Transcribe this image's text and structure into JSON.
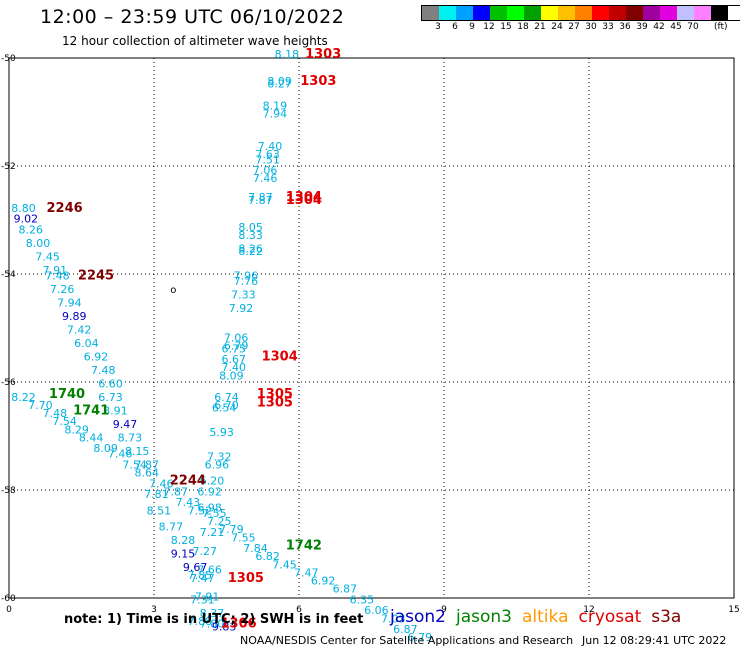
{
  "header": {
    "title": "12:00 – 23:59 UTC 06/10/2022",
    "subtitle": "12 hour collection of altimeter wave heights"
  },
  "legend": {
    "colors": [
      "#808080",
      "#00f0f0",
      "#00a0ff",
      "#0000ff",
      "#00c000",
      "#00ff00",
      "#00a000",
      "#ffff00",
      "#ffc000",
      "#ff8000",
      "#ff0000",
      "#c00000",
      "#800000",
      "#a000a0",
      "#e000e0",
      "#c0c0ff",
      "#ff80ff",
      "#000000"
    ],
    "labels": [
      "3",
      "6",
      "9",
      "12",
      "15",
      "18",
      "21",
      "24",
      "27",
      "30",
      "33",
      "36",
      "39",
      "42",
      "45",
      "70"
    ],
    "units": "(ft)"
  },
  "axes": {
    "x_ticks": [
      "0",
      "3",
      "6",
      "9",
      "12",
      "15"
    ],
    "y_ticks": [
      "-50",
      "-52",
      "-54",
      "-56",
      "-58",
      "-60"
    ],
    "x_range": [
      0,
      15
    ],
    "y_range": [
      -60,
      -50
    ]
  },
  "footer": {
    "note": "note:  1) Time is in UTC;  2) SWH is in feet",
    "credit": "NOAA/NESDIS Center for Satellite Applications and Research",
    "timestamp": "Jun 12 08:29:41 UTC 2022"
  },
  "satellites": [
    {
      "name": "jason2",
      "color": "#0000c0"
    },
    {
      "name": "jason3",
      "color": "#008000"
    },
    {
      "name": "altika",
      "color": "#ff9900"
    },
    {
      "name": "cryosat",
      "color": "#e00000"
    },
    {
      "name": "s3a",
      "color": "#800000"
    }
  ],
  "observations": [
    {
      "lon": 5.75,
      "lat": -50.0,
      "v": "8.18",
      "c": "#00b0e0"
    },
    {
      "lon": 5.6,
      "lat": -50.5,
      "v": "8.09",
      "c": "#00b0e0"
    },
    {
      "lon": 5.6,
      "lat": -50.55,
      "v": "8.27",
      "c": "#00b0e0"
    },
    {
      "lon": 5.5,
      "lat": -50.95,
      "v": "8.19",
      "c": "#00b0e0"
    },
    {
      "lon": 5.5,
      "lat": -51.1,
      "v": "7.94",
      "c": "#00b0e0"
    },
    {
      "lon": 5.4,
      "lat": -51.7,
      "v": "7.40",
      "c": "#00b0e0"
    },
    {
      "lon": 5.35,
      "lat": -51.85,
      "v": "7.63",
      "c": "#00b0e0"
    },
    {
      "lon": 5.35,
      "lat": -51.95,
      "v": "7.51",
      "c": "#00b0e0"
    },
    {
      "lon": 5.3,
      "lat": -52.15,
      "v": "7.06",
      "c": "#00b0e0"
    },
    {
      "lon": 5.3,
      "lat": -52.3,
      "v": "7.46",
      "c": "#00b0e0"
    },
    {
      "lon": 5.2,
      "lat": -52.65,
      "v": "7.87",
      "c": "#00b0e0"
    },
    {
      "lon": 5.2,
      "lat": -52.7,
      "v": "7.87",
      "c": "#00b0e0"
    },
    {
      "lon": 5.0,
      "lat": -53.2,
      "v": "8.05",
      "c": "#00b0e0"
    },
    {
      "lon": 5.0,
      "lat": -53.35,
      "v": "8.33",
      "c": "#00b0e0"
    },
    {
      "lon": 5.0,
      "lat": -53.6,
      "v": "8.26",
      "c": "#00b0e0"
    },
    {
      "lon": 5.0,
      "lat": -53.65,
      "v": "8.22",
      "c": "#00b0e0"
    },
    {
      "lon": 4.9,
      "lat": -54.1,
      "v": "7.96",
      "c": "#00b0e0"
    },
    {
      "lon": 4.9,
      "lat": -54.2,
      "v": "7.76",
      "c": "#00b0e0"
    },
    {
      "lon": 4.85,
      "lat": -54.45,
      "v": "7.33",
      "c": "#00b0e0"
    },
    {
      "lon": 4.8,
      "lat": -54.7,
      "v": "7.92",
      "c": "#00b0e0"
    },
    {
      "lon": 4.7,
      "lat": -55.25,
      "v": "7.06",
      "c": "#00b0e0"
    },
    {
      "lon": 4.7,
      "lat": -55.4,
      "v": "6.79",
      "c": "#00b0e0"
    },
    {
      "lon": 4.65,
      "lat": -55.45,
      "v": "6.75",
      "c": "#00b0e0"
    },
    {
      "lon": 4.65,
      "lat": -55.65,
      "v": "6.67",
      "c": "#00b0e0"
    },
    {
      "lon": 4.65,
      "lat": -55.8,
      "v": "7.40",
      "c": "#00b0e0"
    },
    {
      "lon": 4.6,
      "lat": -55.95,
      "v": "8.09",
      "c": "#00b0e0"
    },
    {
      "lon": 4.5,
      "lat": -56.35,
      "v": "6.74",
      "c": "#00b0e0"
    },
    {
      "lon": 4.5,
      "lat": -56.5,
      "v": "6.70",
      "c": "#00b0e0"
    },
    {
      "lon": 4.45,
      "lat": -56.55,
      "v": "6.54",
      "c": "#00b0e0"
    },
    {
      "lon": 4.4,
      "lat": -57.0,
      "v": "5.93",
      "c": "#00b0e0"
    },
    {
      "lon": 4.35,
      "lat": -57.45,
      "v": "7.32",
      "c": "#00b0e0"
    },
    {
      "lon": 4.3,
      "lat": -57.6,
      "v": "6.96",
      "c": "#00b0e0"
    },
    {
      "lon": 4.2,
      "lat": -57.9,
      "v": "6.20",
      "c": "#00b0e0"
    },
    {
      "lon": 4.15,
      "lat": -58.1,
      "v": "6.92",
      "c": "#00b0e0"
    },
    {
      "lon": 0.3,
      "lat": -52.85,
      "v": "8.80",
      "c": "#00b0e0"
    },
    {
      "lon": 0.35,
      "lat": -53.05,
      "v": "9.02",
      "c": "#0000c0"
    },
    {
      "lon": 0.45,
      "lat": -53.25,
      "v": "8.26",
      "c": "#00b0e0"
    },
    {
      "lon": 0.6,
      "lat": -53.5,
      "v": "8.00",
      "c": "#00b0e0"
    },
    {
      "lon": 0.8,
      "lat": -53.75,
      "v": "7.45",
      "c": "#00b0e0"
    },
    {
      "lon": 0.95,
      "lat": -54.0,
      "v": "7.91",
      "c": "#00b0e0"
    },
    {
      "lon": 1.0,
      "lat": -54.1,
      "v": "7.48",
      "c": "#00b0e0"
    },
    {
      "lon": 1.1,
      "lat": -54.35,
      "v": "7.26",
      "c": "#00b0e0"
    },
    {
      "lon": 1.25,
      "lat": -54.6,
      "v": "7.94",
      "c": "#00b0e0"
    },
    {
      "lon": 1.35,
      "lat": -54.85,
      "v": "9.89",
      "c": "#0000c0"
    },
    {
      "lon": 1.45,
      "lat": -55.1,
      "v": "7.42",
      "c": "#00b0e0"
    },
    {
      "lon": 1.6,
      "lat": -55.35,
      "v": "6.04",
      "c": "#00b0e0"
    },
    {
      "lon": 1.8,
      "lat": -55.6,
      "v": "6.92",
      "c": "#00b0e0"
    },
    {
      "lon": 1.95,
      "lat": -55.85,
      "v": "7.48",
      "c": "#00b0e0"
    },
    {
      "lon": 2.1,
      "lat": -56.1,
      "v": "6.60",
      "c": "#00b0e0"
    },
    {
      "lon": 2.1,
      "lat": -56.35,
      "v": "6.73",
      "c": "#00b0e0"
    },
    {
      "lon": 0.3,
      "lat": -56.35,
      "v": "8.22",
      "c": "#00b0e0"
    },
    {
      "lon": 0.65,
      "lat": -56.5,
      "v": "7.70",
      "c": "#00b0e0"
    },
    {
      "lon": 0.95,
      "lat": -56.65,
      "v": "7.48",
      "c": "#00b0e0"
    },
    {
      "lon": 1.15,
      "lat": -56.8,
      "v": "7.54",
      "c": "#00b0e0"
    },
    {
      "lon": 1.4,
      "lat": -56.95,
      "v": "8.29",
      "c": "#00b0e0"
    },
    {
      "lon": 1.7,
      "lat": -57.1,
      "v": "8.44",
      "c": "#00b0e0"
    },
    {
      "lon": 2.2,
      "lat": -56.6,
      "v": "8.91",
      "c": "#00b0e0"
    },
    {
      "lon": 2.4,
      "lat": -56.85,
      "v": "9.47",
      "c": "#0000c0"
    },
    {
      "lon": 2.5,
      "lat": -57.1,
      "v": "8.73",
      "c": "#00b0e0"
    },
    {
      "lon": 2.0,
      "lat": -57.3,
      "v": "8.09",
      "c": "#00b0e0"
    },
    {
      "lon": 2.3,
      "lat": -57.4,
      "v": "7.46",
      "c": "#00b0e0"
    },
    {
      "lon": 2.65,
      "lat": -57.35,
      "v": "8.15",
      "c": "#00b0e0"
    },
    {
      "lon": 2.6,
      "lat": -57.6,
      "v": "7.54",
      "c": "#00b0e0"
    },
    {
      "lon": 2.85,
      "lat": -57.6,
      "v": "7.87",
      "c": "#00b0e0"
    },
    {
      "lon": 2.85,
      "lat": -57.75,
      "v": "8.64",
      "c": "#00b0e0"
    },
    {
      "lon": 3.15,
      "lat": -57.95,
      "v": "7.46",
      "c": "#00b0e0"
    },
    {
      "lon": 3.05,
      "lat": -58.15,
      "v": "7.81",
      "c": "#00b0e0"
    },
    {
      "lon": 3.45,
      "lat": -58.1,
      "v": "7.87",
      "c": "#00b0e0"
    },
    {
      "lon": 3.7,
      "lat": -58.3,
      "v": "7.43",
      "c": "#00b0e0"
    },
    {
      "lon": 3.1,
      "lat": -58.45,
      "v": "8.51",
      "c": "#00b0e0"
    },
    {
      "lon": 3.95,
      "lat": -58.45,
      "v": "7.52",
      "c": "#00b0e0"
    },
    {
      "lon": 4.15,
      "lat": -58.4,
      "v": "6.98",
      "c": "#00b0e0"
    },
    {
      "lon": 4.25,
      "lat": -58.5,
      "v": "7.55",
      "c": "#00b0e0"
    },
    {
      "lon": 4.35,
      "lat": -58.65,
      "v": "7.25",
      "c": "#00b0e0"
    },
    {
      "lon": 3.35,
      "lat": -58.75,
      "v": "8.77",
      "c": "#00b0e0"
    },
    {
      "lon": 4.6,
      "lat": -58.8,
      "v": "7.79",
      "c": "#00b0e0"
    },
    {
      "lon": 4.2,
      "lat": -58.85,
      "v": "7.21",
      "c": "#00b0e0"
    },
    {
      "lon": 3.6,
      "lat": -59.0,
      "v": "8.28",
      "c": "#00b0e0"
    },
    {
      "lon": 4.85,
      "lat": -58.95,
      "v": "7.55",
      "c": "#00b0e0"
    },
    {
      "lon": 4.05,
      "lat": -59.2,
      "v": "7.27",
      "c": "#00b0e0"
    },
    {
      "lon": 3.6,
      "lat": -59.25,
      "v": "9.15",
      "c": "#0000c0"
    },
    {
      "lon": 5.1,
      "lat": -59.15,
      "v": "7.84",
      "c": "#00b0e0"
    },
    {
      "lon": 5.35,
      "lat": -59.3,
      "v": "6.82",
      "c": "#00b0e0"
    },
    {
      "lon": 5.7,
      "lat": -59.45,
      "v": "7.45",
      "c": "#00b0e0"
    },
    {
      "lon": 3.85,
      "lat": -59.5,
      "v": "9.67",
      "c": "#0000c0"
    },
    {
      "lon": 4.15,
      "lat": -59.55,
      "v": "7.66",
      "c": "#00b0e0"
    },
    {
      "lon": 3.95,
      "lat": -59.65,
      "v": "7.85",
      "c": "#00b0e0"
    },
    {
      "lon": 6.15,
      "lat": -59.6,
      "v": "7.47",
      "c": "#00b0e0"
    },
    {
      "lon": 4.0,
      "lat": -59.7,
      "v": "7.47",
      "c": "#00b0e0"
    },
    {
      "lon": 6.5,
      "lat": -59.75,
      "v": "6.92",
      "c": "#00b0e0"
    },
    {
      "lon": 6.95,
      "lat": -59.9,
      "v": "6.87",
      "c": "#00b0e0"
    },
    {
      "lon": 4.1,
      "lat": -60.05,
      "v": "7.91",
      "c": "#00b0e0"
    },
    {
      "lon": 4.0,
      "lat": -60.1,
      "v": "7.31",
      "c": "#00b0e0"
    },
    {
      "lon": 7.3,
      "lat": -60.1,
      "v": "6.35",
      "c": "#00b0e0"
    },
    {
      "lon": 4.2,
      "lat": -60.35,
      "v": "8.37",
      "c": "#00b0e0"
    },
    {
      "lon": 7.6,
      "lat": -60.3,
      "v": "6.06",
      "c": "#00b0e0"
    },
    {
      "lon": 7.95,
      "lat": -60.45,
      "v": "7.03",
      "c": "#00b0e0"
    },
    {
      "lon": 3.95,
      "lat": -60.5,
      "v": "7.88",
      "c": "#00b0e0"
    },
    {
      "lon": 4.2,
      "lat": -60.55,
      "v": "7.80",
      "c": "#00b0e0"
    },
    {
      "lon": 4.45,
      "lat": -60.6,
      "v": "9.83",
      "c": "#0000c0"
    },
    {
      "lon": 8.2,
      "lat": -60.65,
      "v": "6.87",
      "c": "#00b0e0"
    },
    {
      "lon": 8.5,
      "lat": -60.8,
      "v": "6.79",
      "c": "#00b0e0"
    }
  ],
  "pass_labels": [
    {
      "lon": 6.5,
      "lat": -50.0,
      "t": "1303",
      "c": "#e00000"
    },
    {
      "lon": 6.4,
      "lat": -50.5,
      "t": "1303",
      "c": "#e00000"
    },
    {
      "lon": 6.1,
      "lat": -52.65,
      "t": "1304",
      "c": "#e00000"
    },
    {
      "lon": 6.1,
      "lat": -52.7,
      "t": "1304",
      "c": "#e00000"
    },
    {
      "lon": 5.6,
      "lat": -55.6,
      "t": "1304",
      "c": "#e00000"
    },
    {
      "lon": 5.5,
      "lat": -56.3,
      "t": "1305",
      "c": "#e00000"
    },
    {
      "lon": 5.5,
      "lat": -56.45,
      "t": "1305",
      "c": "#e00000"
    },
    {
      "lon": 4.9,
      "lat": -59.7,
      "t": "1305",
      "c": "#e00000"
    },
    {
      "lon": 4.75,
      "lat": -60.55,
      "t": "1306",
      "c": "#e00000"
    },
    {
      "lon": 1.15,
      "lat": -52.85,
      "t": "2246",
      "c": "#800000"
    },
    {
      "lon": 1.8,
      "lat": -54.1,
      "t": "2245",
      "c": "#800000"
    },
    {
      "lon": 3.7,
      "lat": -57.9,
      "t": "2244",
      "c": "#800000"
    },
    {
      "lon": 1.2,
      "lat": -56.3,
      "t": "1740",
      "c": "#008000"
    },
    {
      "lon": 1.7,
      "lat": -56.6,
      "t": "1741",
      "c": "#008000"
    },
    {
      "lon": 6.1,
      "lat": -59.1,
      "t": "1742",
      "c": "#008000"
    }
  ],
  "markers": [
    {
      "lon": 3.4,
      "lat": -54.35,
      "t": "o"
    }
  ]
}
